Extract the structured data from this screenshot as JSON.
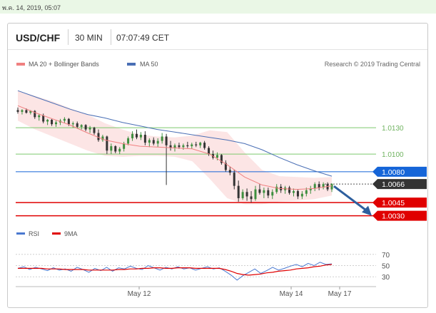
{
  "datetime_bar": "พ.ค. 14, 2019, 05:07",
  "header": {
    "pair": "USD/CHF",
    "interval": "30 MIN",
    "time": "07:07:49 CET"
  },
  "legend": {
    "bollinger": "MA 20 + Bollinger Bands",
    "ma50": "MA 50",
    "credit": "Research © 2019 Trading Central"
  },
  "rsi_legend": {
    "rsi": "RSI",
    "ma9": "9MA"
  },
  "colors": {
    "bollinger": "#f08080",
    "ma50": "#4a6fb5",
    "support": "#e00000",
    "resistance_blue": "#1565d8",
    "pivot_green": "#7cc96d",
    "price_box": "#333333",
    "arrow": "#2d5f9e",
    "bull": "#3f8f3f",
    "bear": "#333333",
    "rsi_line": "#4a78d0",
    "rsi_ma": "#e00000"
  },
  "chart_data": [
    {
      "type": "candlestick",
      "title": "USD/CHF 30 MIN",
      "x_ticks": [
        "May 12",
        "May 14",
        "May 17"
      ],
      "ylim": [
        1.002,
        1.019
      ],
      "levels": [
        {
          "value": 1.013,
          "label": "1.0130",
          "kind": "line",
          "color": "#7cc96d"
        },
        {
          "value": 1.01,
          "label": "1.0100",
          "kind": "line",
          "color": "#7cc96d"
        },
        {
          "value": 1.008,
          "label": "1.0080",
          "kind": "box",
          "color": "#1565d8"
        },
        {
          "value": 1.0066,
          "label": "1.0066",
          "kind": "box",
          "color": "#333333"
        },
        {
          "value": 1.0045,
          "label": "1.0045",
          "kind": "box",
          "color": "#e00000"
        },
        {
          "value": 1.003,
          "label": "1.0030",
          "kind": "box",
          "color": "#e00000"
        }
      ],
      "current_price": 1.0066,
      "projection": {
        "from": 1.0066,
        "to": 1.003
      },
      "ma50": [
        1.0172,
        1.0165,
        1.0158,
        1.0151,
        1.0145,
        1.0141,
        1.0136,
        1.0132,
        1.0128,
        1.0125,
        1.0122,
        1.0119,
        1.0116,
        1.0112,
        1.0105,
        1.0096,
        1.0088,
        1.0081,
        1.0075
      ],
      "ma20": [
        1.0155,
        1.0147,
        1.014,
        1.0133,
        1.0124,
        1.0116,
        1.0112,
        1.0109,
        1.0108,
        1.0107,
        1.0106,
        1.01,
        1.0088,
        1.0074,
        1.0065,
        1.0061,
        1.006,
        1.0061,
        1.0064
      ],
      "boll_upper": [
        1.0172,
        1.0166,
        1.016,
        1.0152,
        1.0145,
        1.0135,
        1.0128,
        1.0122,
        1.012,
        1.0119,
        1.0121,
        1.0127,
        1.0125,
        1.0102,
        1.0082,
        1.0075,
        1.0074,
        1.0073,
        1.0074
      ],
      "boll_lower": [
        1.0138,
        1.0128,
        1.012,
        1.0112,
        1.0104,
        1.0098,
        1.0097,
        1.0098,
        1.0098,
        1.0097,
        1.0092,
        1.0072,
        1.005,
        1.0043,
        1.0043,
        1.0046,
        1.0047,
        1.0049,
        1.0053
      ],
      "candles": [
        [
          1.015,
          1.0153,
          1.0146,
          1.0148
        ],
        [
          1.0148,
          1.0151,
          1.0145,
          1.015
        ],
        [
          1.015,
          1.0152,
          1.0146,
          1.0147
        ],
        [
          1.0147,
          1.015,
          1.0145,
          1.0149
        ],
        [
          1.0149,
          1.015,
          1.014,
          1.0142
        ],
        [
          1.0142,
          1.0146,
          1.0138,
          1.0144
        ],
        [
          1.0144,
          1.0146,
          1.0135,
          1.0137
        ],
        [
          1.0137,
          1.014,
          1.0133,
          1.0139
        ],
        [
          1.0139,
          1.014,
          1.0132,
          1.0134
        ],
        [
          1.0134,
          1.0138,
          1.0131,
          1.0136
        ],
        [
          1.0136,
          1.014,
          1.0133,
          1.0138
        ],
        [
          1.0138,
          1.0142,
          1.0135,
          1.014
        ],
        [
          1.014,
          1.0141,
          1.0132,
          1.0134
        ],
        [
          1.0134,
          1.0137,
          1.013,
          1.0135
        ],
        [
          1.0135,
          1.0137,
          1.0129,
          1.0131
        ],
        [
          1.0131,
          1.0134,
          1.0128,
          1.0133
        ],
        [
          1.0133,
          1.0134,
          1.0126,
          1.0128
        ],
        [
          1.0128,
          1.0132,
          1.0124,
          1.013
        ],
        [
          1.013,
          1.0131,
          1.0122,
          1.0124
        ],
        [
          1.0124,
          1.0128,
          1.0114,
          1.0116
        ],
        [
          1.0116,
          1.0122,
          1.0114,
          1.012
        ],
        [
          1.012,
          1.0121,
          1.01,
          1.0104
        ],
        [
          1.0104,
          1.0112,
          1.01,
          1.0109
        ],
        [
          1.0109,
          1.011,
          1.0101,
          1.0103
        ],
        [
          1.0103,
          1.0108,
          1.01,
          1.0106
        ],
        [
          1.0106,
          1.0114,
          1.0103,
          1.0112
        ],
        [
          1.0112,
          1.012,
          1.011,
          1.0118
        ],
        [
          1.0118,
          1.0126,
          1.0115,
          1.0123
        ],
        [
          1.0123,
          1.0128,
          1.0117,
          1.0119
        ],
        [
          1.0119,
          1.0125,
          1.0116,
          1.0122
        ],
        [
          1.0122,
          1.0126,
          1.011,
          1.0113
        ],
        [
          1.0113,
          1.0118,
          1.0108,
          1.0116
        ],
        [
          1.0116,
          1.0119,
          1.011,
          1.0112
        ],
        [
          1.0112,
          1.0118,
          1.0108,
          1.0115
        ],
        [
          1.0115,
          1.0124,
          1.0112,
          1.012
        ],
        [
          1.012,
          1.0123,
          1.0065,
          1.011
        ],
        [
          1.011,
          1.0115,
          1.0104,
          1.0107
        ],
        [
          1.0107,
          1.0112,
          1.0103,
          1.011
        ],
        [
          1.011,
          1.0113,
          1.0106,
          1.0108
        ],
        [
          1.0108,
          1.0112,
          1.0105,
          1.011
        ],
        [
          1.011,
          1.0114,
          1.0107,
          1.0109
        ],
        [
          1.0109,
          1.0113,
          1.0106,
          1.0111
        ],
        [
          1.0111,
          1.0114,
          1.0108,
          1.011
        ],
        [
          1.011,
          1.0114,
          1.0107,
          1.0113
        ],
        [
          1.0113,
          1.0115,
          1.0105,
          1.0107
        ],
        [
          1.0107,
          1.0109,
          1.0098,
          1.01
        ],
        [
          1.01,
          1.0104,
          1.0094,
          1.0096
        ],
        [
          1.0096,
          1.0102,
          1.0093,
          1.0099
        ],
        [
          1.0099,
          1.01,
          1.0088,
          1.009
        ],
        [
          1.009,
          1.0093,
          1.008,
          1.0082
        ],
        [
          1.0082,
          1.0086,
          1.0076,
          1.0079
        ],
        [
          1.0079,
          1.0082,
          1.006,
          1.0064
        ],
        [
          1.0064,
          1.007,
          1.0046,
          1.005
        ],
        [
          1.005,
          1.006,
          1.0048,
          1.0057
        ],
        [
          1.0057,
          1.0061,
          1.0047,
          1.0052
        ],
        [
          1.0052,
          1.0058,
          1.0045,
          1.0049
        ],
        [
          1.0049,
          1.0064,
          1.0047,
          1.006
        ],
        [
          1.006,
          1.0066,
          1.0054,
          1.0056
        ],
        [
          1.0056,
          1.0062,
          1.005,
          1.0059
        ],
        [
          1.0059,
          1.0062,
          1.005,
          1.0053
        ],
        [
          1.0053,
          1.006,
          1.0049,
          1.0057
        ],
        [
          1.0057,
          1.0066,
          1.0055,
          1.0063
        ],
        [
          1.0063,
          1.0066,
          1.0056,
          1.0059
        ],
        [
          1.0059,
          1.0064,
          1.0055,
          1.0062
        ],
        [
          1.0062,
          1.0064,
          1.0054,
          1.0056
        ],
        [
          1.0056,
          1.0061,
          1.0052,
          1.0058
        ],
        [
          1.0058,
          1.006,
          1.0049,
          1.0052
        ],
        [
          1.0052,
          1.0058,
          1.0049,
          1.0055
        ],
        [
          1.0055,
          1.0062,
          1.0052,
          1.0059
        ],
        [
          1.0059,
          1.0064,
          1.0055,
          1.0061
        ],
        [
          1.0061,
          1.0068,
          1.0058,
          1.0066
        ],
        [
          1.0066,
          1.0069,
          1.0059,
          1.0062
        ],
        [
          1.0062,
          1.0068,
          1.006,
          1.0066
        ],
        [
          1.0066,
          1.0068,
          1.0058,
          1.006
        ],
        [
          1.006,
          1.0067,
          1.0057,
          1.0066
        ]
      ]
    },
    {
      "type": "line",
      "title": "RSI",
      "ylim": [
        15,
        85
      ],
      "y_ticks": [
        70,
        50,
        30
      ],
      "series": [
        {
          "name": "RSI",
          "values": [
            45,
            48,
            43,
            47,
            44,
            41,
            46,
            42,
            44,
            40,
            47,
            43,
            38,
            45,
            41,
            47,
            40,
            46,
            44,
            49,
            45,
            43,
            50,
            46,
            42,
            47,
            44,
            48,
            44,
            46,
            42,
            45,
            48,
            44,
            46,
            40,
            33,
            24,
            32,
            38,
            44,
            36,
            41,
            47,
            42,
            45,
            49,
            52,
            48,
            54,
            50,
            56,
            52,
            53
          ]
        },
        {
          "name": "9MA",
          "values": [
            45,
            45,
            45,
            45,
            45,
            44,
            44,
            44,
            43,
            43,
            43,
            43,
            42,
            42,
            42,
            42,
            42,
            43,
            43,
            44,
            44,
            45,
            45,
            46,
            46,
            45,
            45,
            46,
            46,
            46,
            45,
            45,
            45,
            45,
            45,
            43,
            40,
            36,
            34,
            33,
            34,
            35,
            37,
            38,
            40,
            41,
            42,
            44,
            45,
            46,
            48,
            49,
            51,
            52
          ]
        }
      ]
    }
  ]
}
